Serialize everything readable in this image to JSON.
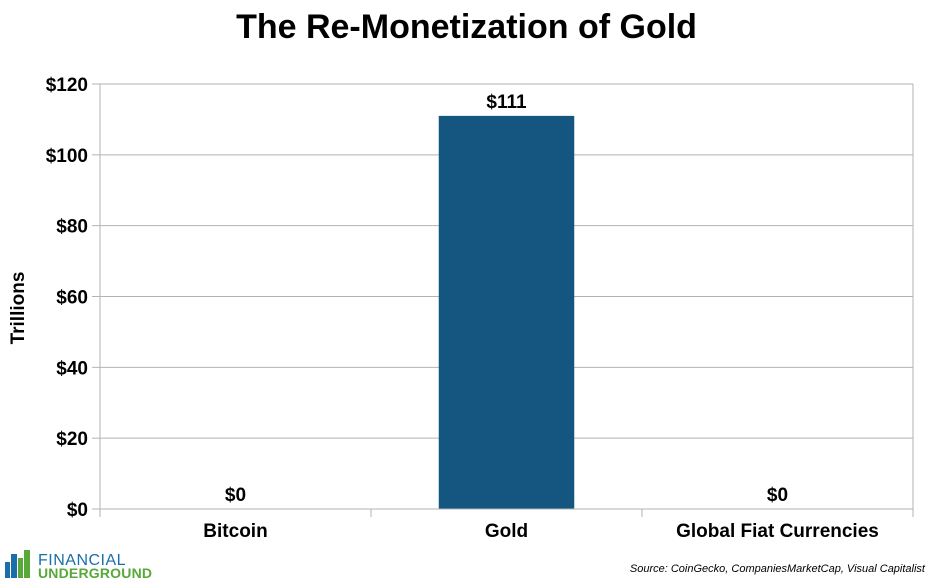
{
  "chart_data": {
    "type": "bar",
    "title": "The Re-Monetization of Gold",
    "categories": [
      "Bitcoin",
      "Gold",
      "Global Fiat Currencies"
    ],
    "values": [
      0,
      111,
      0
    ],
    "value_labels": [
      "$0",
      "$111",
      "$0"
    ],
    "ylabel": "Trillions",
    "ylim": [
      0,
      120
    ],
    "yticks": [
      0,
      20,
      40,
      60,
      80,
      100,
      120
    ],
    "ytick_labels": [
      "$0",
      "$20",
      "$40",
      "$60",
      "$80",
      "$100",
      "$120"
    ],
    "grid": true,
    "legend": "none",
    "bar_color": "#14567f"
  },
  "source": "Source: CoinGecko, CompaniesMarketCap, Visual Capitalist",
  "logo": {
    "line1": "FINANCIAL",
    "line2": "UNDERGROUND"
  }
}
